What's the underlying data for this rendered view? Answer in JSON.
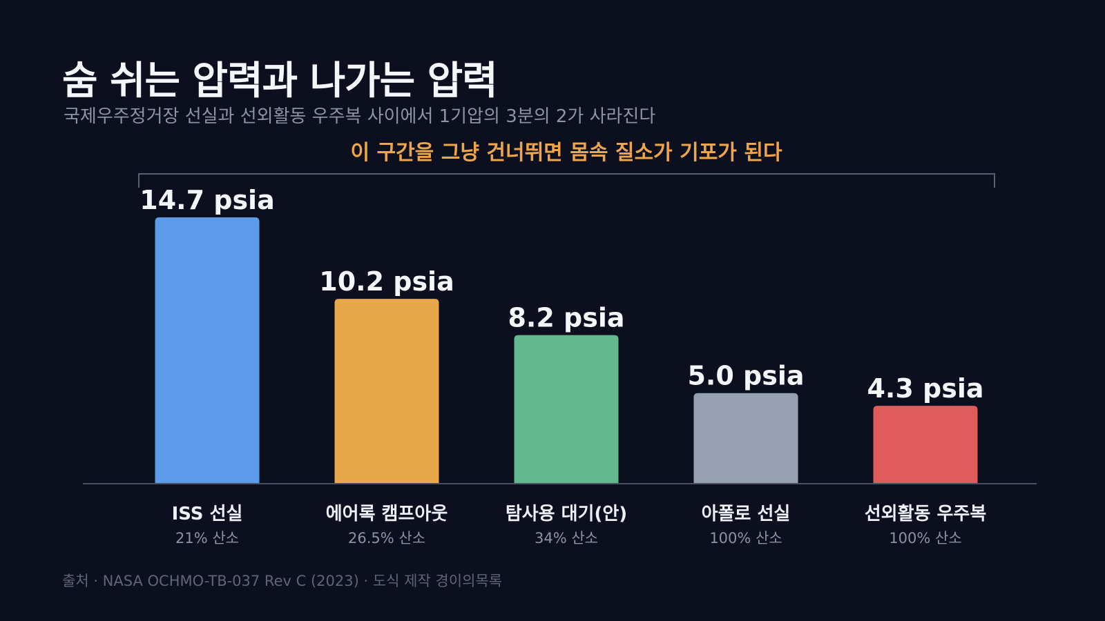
{
  "title": "숨 쉬는 압력과 나가는 압력",
  "subtitle": "국제우주정거장 선실과 선외활동 우주복 사이에서 1기압의 3분의 2가 사라진다",
  "source": "출처 · NASA OCHMO-TB-037 Rev C (2023) · 도식 제작 경이의목록",
  "chart_data": {
    "type": "bar",
    "title": "숨 쉬는 압력과 나가는 압력",
    "subtitle": "국제우주정거장 선실과 선외활동 우주복 사이에서 1기압의 3분의 2가 사라진다",
    "categories": [
      "ISS 선실",
      "에어록 캠프아웃",
      "탐사용 대기(안)",
      "아폴로 선실",
      "선외활동 우주복"
    ],
    "category_sublabels": [
      "21% 산소",
      "26.5% 산소",
      "34% 산소",
      "100% 산소",
      "100% 산소"
    ],
    "values": [
      14.7,
      10.2,
      8.2,
      5.0,
      4.3
    ],
    "value_labels": [
      "14.7 psia",
      "10.2 psia",
      "8.2 psia",
      "5.0 psia",
      "4.3 psia"
    ],
    "unit": "psia",
    "colors": [
      "#5b9bea",
      "#e8a84a",
      "#62b98c",
      "#97a0b3",
      "#e05c5c"
    ],
    "ylim": [
      0,
      14.7
    ],
    "grid": false,
    "annotation": {
      "text": "이 구간을 그냥 건너뛰면 몸속 질소가 기포가 된다",
      "color": "#f0a54a"
    }
  }
}
